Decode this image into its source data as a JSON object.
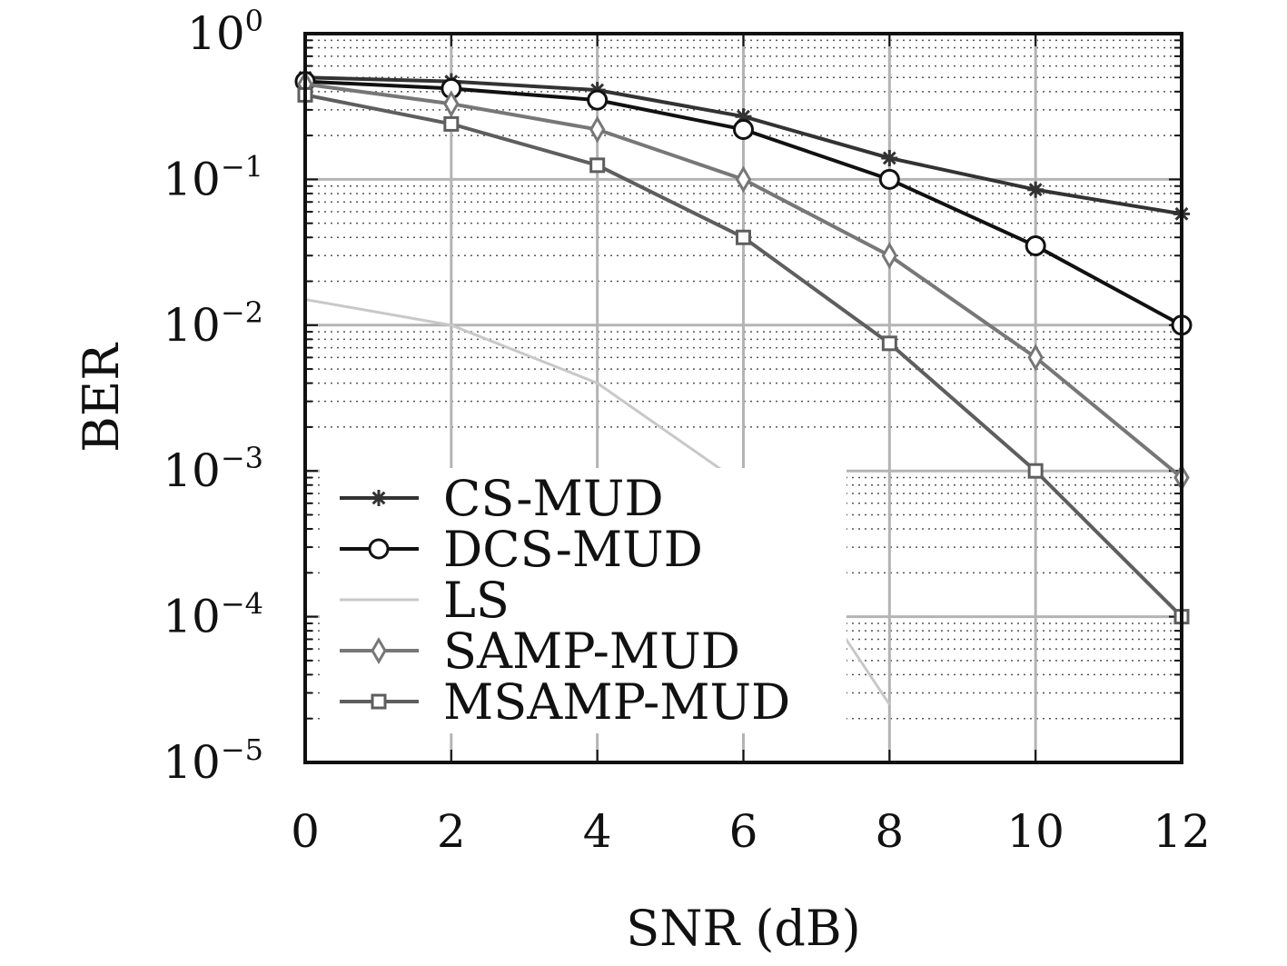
{
  "chart_data": {
    "type": "line",
    "xlabel": "SNR (dB)",
    "ylabel": "BER",
    "x": [
      0,
      2,
      4,
      6,
      8,
      10,
      12
    ],
    "xlim": [
      0,
      12
    ],
    "ylim": [
      1e-05,
      1
    ],
    "yscale": "log",
    "x_ticks": [
      "0",
      "2",
      "4",
      "6",
      "8",
      "10",
      "12"
    ],
    "y_ticks": [
      {
        "base": "10",
        "exp": "0"
      },
      {
        "base": "10",
        "exp": "−1"
      },
      {
        "base": "10",
        "exp": "−2"
      },
      {
        "base": "10",
        "exp": "−3"
      },
      {
        "base": "10",
        "exp": "−4"
      },
      {
        "base": "10",
        "exp": "−5"
      }
    ],
    "grid": true,
    "legend_position": "bottom-left",
    "series": [
      {
        "name": "CS-MUD",
        "marker": "star",
        "color": "#333333",
        "x": [
          0,
          2,
          4,
          6,
          8,
          10,
          12
        ],
        "values": [
          0.5,
          0.47,
          0.41,
          0.27,
          0.14,
          0.085,
          0.058
        ]
      },
      {
        "name": "DCS-MUD",
        "marker": "circle",
        "color": "#111111",
        "x": [
          0,
          2,
          4,
          6,
          8,
          10,
          12
        ],
        "values": [
          0.47,
          0.42,
          0.35,
          0.22,
          0.1,
          0.035,
          0.01
        ]
      },
      {
        "name": "LS",
        "marker": "none",
        "color": "#c8c8c8",
        "x": [
          0,
          2,
          4,
          6,
          8
        ],
        "values": [
          0.015,
          0.01,
          0.004,
          0.0008,
          2.5e-05
        ]
      },
      {
        "name": "SAMP-MUD",
        "marker": "diamond",
        "color": "#777777",
        "x": [
          0,
          2,
          4,
          6,
          8,
          10,
          12
        ],
        "values": [
          0.45,
          0.33,
          0.22,
          0.1,
          0.03,
          0.006,
          0.0009
        ]
      },
      {
        "name": "MSAMP-MUD",
        "marker": "square",
        "color": "#5e5e5e",
        "x": [
          0,
          2,
          4,
          6,
          8,
          10,
          12
        ],
        "values": [
          0.38,
          0.24,
          0.125,
          0.04,
          0.0075,
          0.001,
          0.0001
        ]
      }
    ]
  }
}
